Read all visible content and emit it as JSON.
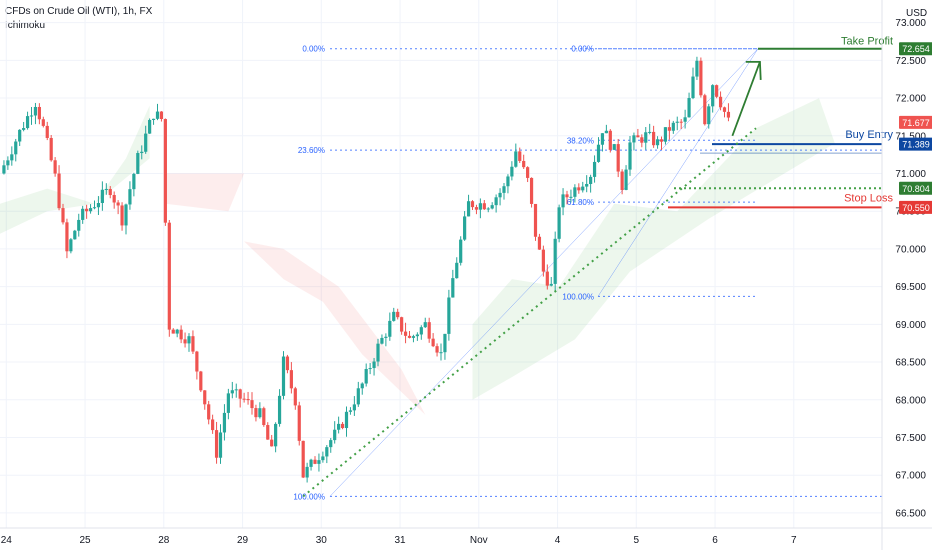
{
  "header": {
    "symbol": "CFDs on Crude Oil (WTI), 1h, FX",
    "indicator": "Ichimoku",
    "currency": "USD"
  },
  "chart_data": {
    "type": "candlestick",
    "y_range": [
      66.3,
      73.3
    ],
    "x_range": [
      0,
      11.2
    ],
    "y_ticks": [
      "73.000",
      "72.500",
      "72.000",
      "71.500",
      "71.000",
      "70.500",
      "70.000",
      "69.500",
      "69.000",
      "68.500",
      "68.000",
      "67.500",
      "67.000",
      "66.500"
    ],
    "x_ticks": [
      {
        "label": "24",
        "x": 0.08
      },
      {
        "label": "25",
        "x": 1.08
      },
      {
        "label": "28",
        "x": 2.08
      },
      {
        "label": "29",
        "x": 3.08
      },
      {
        "label": "30",
        "x": 4.08
      },
      {
        "label": "31",
        "x": 5.08
      },
      {
        "label": "Nov",
        "x": 6.08
      },
      {
        "label": "4",
        "x": 7.08
      },
      {
        "label": "5",
        "x": 8.08
      },
      {
        "label": "6",
        "x": 9.08
      },
      {
        "label": "7",
        "x": 10.08
      }
    ],
    "colors": {
      "up": "#26a69a",
      "down": "#ef5350",
      "grid": "#f0f3fa",
      "fib": "#2962ff",
      "take_profit": "#2e7d32",
      "entry": "#0d47a1",
      "stop": "#e53935",
      "support": "#43a047"
    },
    "anchors": [
      [
        0.0,
        71.0
      ],
      [
        0.25,
        71.55
      ],
      [
        0.45,
        71.95
      ],
      [
        0.55,
        71.6
      ],
      [
        0.7,
        70.95
      ],
      [
        0.85,
        69.95
      ],
      [
        1.0,
        70.4
      ],
      [
        1.2,
        70.6
      ],
      [
        1.4,
        70.8
      ],
      [
        1.55,
        70.4
      ],
      [
        1.75,
        71.2
      ],
      [
        1.95,
        71.8
      ],
      [
        2.08,
        71.7
      ],
      [
        2.12,
        69.0
      ],
      [
        2.4,
        68.8
      ],
      [
        2.55,
        68.2
      ],
      [
        2.75,
        67.3
      ],
      [
        2.9,
        68.1
      ],
      [
        3.1,
        68.0
      ],
      [
        3.3,
        67.8
      ],
      [
        3.45,
        67.3
      ],
      [
        3.6,
        68.5
      ],
      [
        3.75,
        68.0
      ],
      [
        3.85,
        67.0
      ],
      [
        4.0,
        67.2
      ],
      [
        4.3,
        67.6
      ],
      [
        4.6,
        68.2
      ],
      [
        4.8,
        68.7
      ],
      [
        5.0,
        69.1
      ],
      [
        5.2,
        68.8
      ],
      [
        5.4,
        69.0
      ],
      [
        5.6,
        68.6
      ],
      [
        5.75,
        69.6
      ],
      [
        5.95,
        70.6
      ],
      [
        6.2,
        70.6
      ],
      [
        6.4,
        70.8
      ],
      [
        6.55,
        71.3
      ],
      [
        6.7,
        70.9
      ],
      [
        6.8,
        70.2
      ],
      [
        6.9,
        69.7
      ],
      [
        7.0,
        69.5
      ],
      [
        7.1,
        70.6
      ],
      [
        7.3,
        70.8
      ],
      [
        7.5,
        71.0
      ],
      [
        7.65,
        71.6
      ],
      [
        7.8,
        71.3
      ],
      [
        7.9,
        70.85
      ],
      [
        8.0,
        71.4
      ],
      [
        8.2,
        71.5
      ],
      [
        8.35,
        71.4
      ],
      [
        8.5,
        71.6
      ],
      [
        8.7,
        71.7
      ],
      [
        8.85,
        72.5
      ],
      [
        8.95,
        71.7
      ],
      [
        9.05,
        72.2
      ],
      [
        9.15,
        71.95
      ],
      [
        9.25,
        71.68
      ]
    ],
    "fib_left": {
      "levels": [
        {
          "label": "0.00%",
          "value": 72.654
        },
        {
          "label": "23.60%",
          "value": 71.31
        },
        {
          "label": "100.00%",
          "value": 66.72
        }
      ]
    },
    "fib_right": {
      "levels": [
        {
          "label": "0.00%",
          "value": 72.654
        },
        {
          "label": "38.20%",
          "value": 71.44
        },
        {
          "label": "61.80%",
          "value": 70.62
        },
        {
          "label": "100.00%",
          "value": 69.37
        }
      ]
    },
    "levels": {
      "take_profit": {
        "label": "Take Profit",
        "value": 72.654,
        "tag": "72.654"
      },
      "buy_entry": {
        "label": "Buy Entry",
        "value": 71.389,
        "tag": "71.389"
      },
      "mid_support": {
        "value": 70.804,
        "tag": "70.804"
      },
      "stop_loss": {
        "label": "Stop Loss",
        "value": 70.55,
        "tag": "70.550"
      },
      "last_price": {
        "value": 71.677,
        "tag": "71.677"
      }
    }
  }
}
